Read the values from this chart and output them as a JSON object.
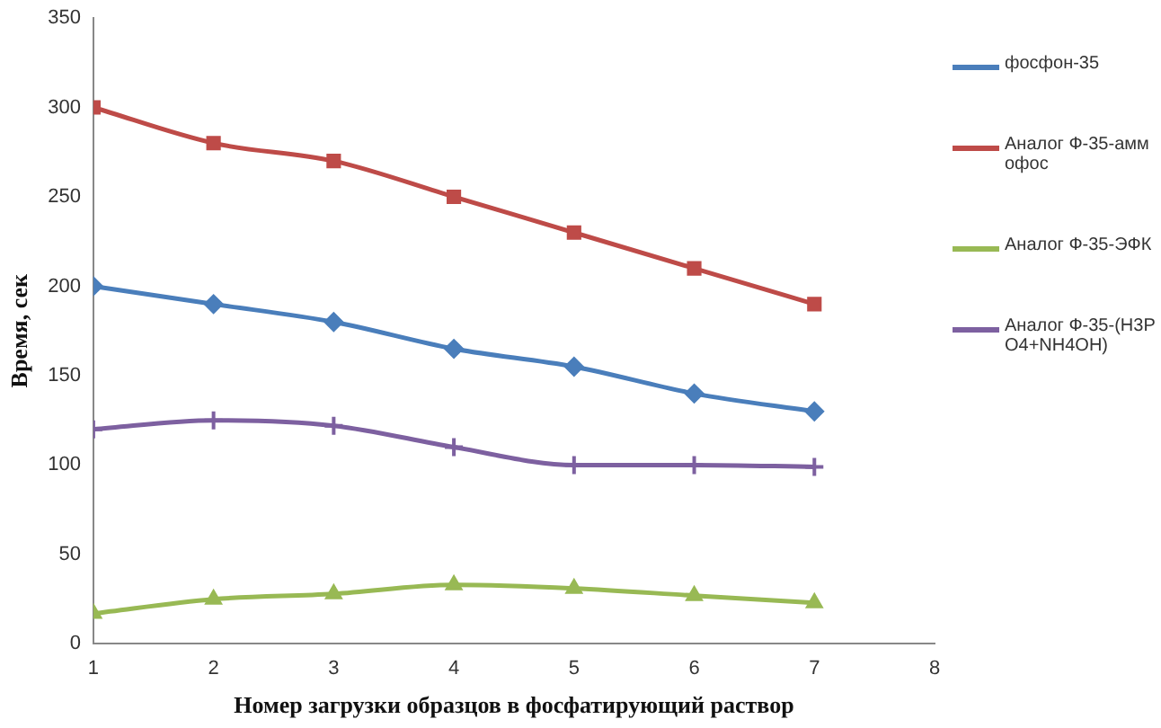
{
  "chart_data": {
    "type": "line",
    "xlabel": "Номер загрузки образцов в фосфатирующий раствор",
    "ylabel": "Время, сек",
    "x": [
      1,
      2,
      3,
      4,
      5,
      6,
      7
    ],
    "xlim": [
      1,
      8
    ],
    "xticks": [
      1,
      2,
      3,
      4,
      5,
      6,
      7,
      8
    ],
    "ylim": [
      0,
      350
    ],
    "yticks": [
      0,
      50,
      100,
      150,
      200,
      250,
      300,
      350
    ],
    "grid": false,
    "legend": "right",
    "series": [
      {
        "name": "фосфон-35",
        "color": "#4a7ebb",
        "marker": "diamond",
        "values": [
          200,
          190,
          180,
          165,
          155,
          140,
          130
        ]
      },
      {
        "name": "Аналог Ф-35-аммофос",
        "color": "#be4b48",
        "marker": "square",
        "values": [
          300,
          280,
          270,
          250,
          230,
          210,
          190
        ]
      },
      {
        "name": "Аналог Ф-35-ЭФК",
        "color": "#98b954",
        "marker": "triangle",
        "values": [
          17,
          25,
          28,
          33,
          31,
          27,
          23
        ]
      },
      {
        "name": "Аналог Ф-35-(H3PO4+NH4OH)",
        "color": "#7d60a0",
        "marker": "cross",
        "values": [
          120,
          125,
          122,
          110,
          100,
          100,
          99
        ]
      }
    ]
  }
}
